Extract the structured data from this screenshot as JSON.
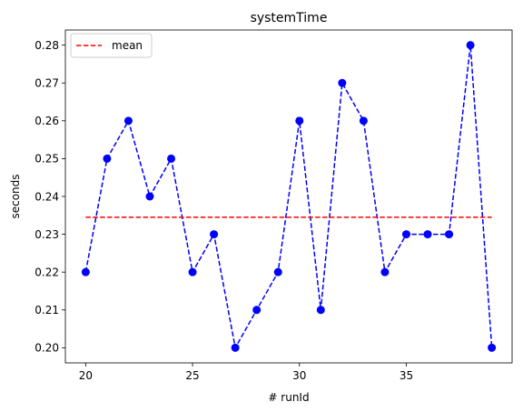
{
  "chart_data": {
    "type": "line",
    "title": "systemTime",
    "xlabel": "# runId",
    "ylabel": "seconds",
    "xlim": [
      19.05,
      39.95
    ],
    "ylim": [
      0.196,
      0.284
    ],
    "xticks": [
      20,
      25,
      30,
      35
    ],
    "xtick_labels": [
      "20",
      "25",
      "30",
      "35"
    ],
    "yticks": [
      0.2,
      0.21,
      0.22,
      0.23,
      0.24,
      0.25,
      0.26,
      0.27,
      0.28
    ],
    "ytick_labels": [
      "0.20",
      "0.21",
      "0.22",
      "0.23",
      "0.24",
      "0.25",
      "0.26",
      "0.27",
      "0.28"
    ],
    "grid": false,
    "legend_position": "top-left",
    "series": [
      {
        "name": "systemTime",
        "color": "#0000ff",
        "style": "dashed",
        "marker": "circle",
        "x": [
          20,
          21,
          22,
          23,
          24,
          25,
          26,
          27,
          28,
          29,
          30,
          31,
          32,
          33,
          34,
          35,
          36,
          37,
          38,
          39
        ],
        "y": [
          0.22,
          0.25,
          0.26,
          0.24,
          0.25,
          0.22,
          0.23,
          0.2,
          0.21,
          0.22,
          0.26,
          0.21,
          0.27,
          0.26,
          0.22,
          0.23,
          0.23,
          0.23,
          0.28,
          0.2
        ]
      },
      {
        "name": "mean",
        "color": "#ff0000",
        "style": "dashed",
        "marker": "none",
        "x": [
          20,
          39
        ],
        "y": [
          0.2345,
          0.2345
        ]
      }
    ],
    "legend": [
      {
        "label": "mean",
        "color": "#ff0000",
        "style": "dashed"
      }
    ]
  }
}
